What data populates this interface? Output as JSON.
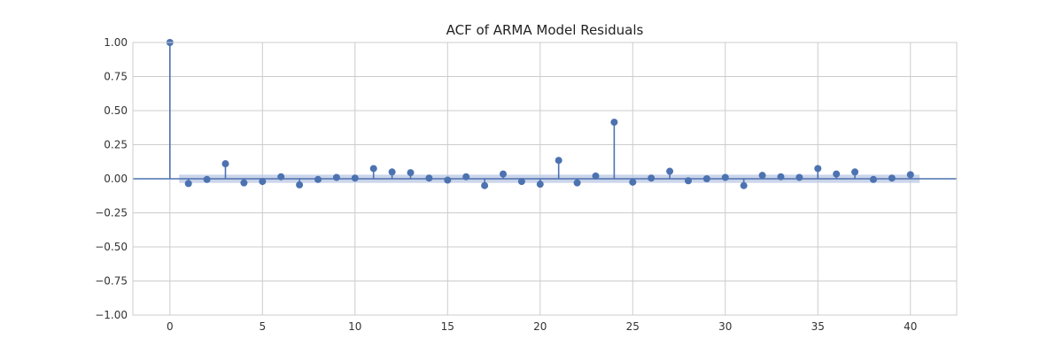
{
  "chart_data": {
    "type": "stem",
    "title": "ACF of ARMA Model Residuals",
    "xlabel": "",
    "ylabel": "",
    "xlim": [
      -2,
      42.5
    ],
    "ylim": [
      -1.0,
      1.0
    ],
    "x_ticks": [
      0,
      5,
      10,
      15,
      20,
      25,
      30,
      35,
      40
    ],
    "y_ticks": [
      -1.0,
      -0.75,
      -0.5,
      -0.25,
      0.0,
      0.25,
      0.5,
      0.75,
      1.0
    ],
    "y_tick_labels": [
      "−1.00",
      "−0.75",
      "−0.50",
      "−0.25",
      "0.00",
      "0.25",
      "0.50",
      "0.75",
      "1.00"
    ],
    "x_tick_labels": [
      "0",
      "5",
      "10",
      "15",
      "20",
      "25",
      "30",
      "35",
      "40"
    ],
    "grid": true,
    "lags": [
      0,
      1,
      2,
      3,
      4,
      5,
      6,
      7,
      8,
      9,
      10,
      11,
      12,
      13,
      14,
      15,
      16,
      17,
      18,
      19,
      20,
      21,
      22,
      23,
      24,
      25,
      26,
      27,
      28,
      29,
      30,
      31,
      32,
      33,
      34,
      35,
      36,
      37,
      38,
      39,
      40
    ],
    "acf": [
      1.0,
      -0.035,
      -0.005,
      0.11,
      -0.03,
      -0.02,
      0.015,
      -0.045,
      -0.005,
      0.01,
      0.005,
      0.075,
      0.05,
      0.045,
      0.005,
      -0.01,
      0.015,
      -0.05,
      0.035,
      -0.02,
      -0.04,
      0.135,
      -0.03,
      0.02,
      0.415,
      -0.025,
      0.005,
      0.055,
      -0.015,
      0.0,
      0.01,
      -0.05,
      0.025,
      0.015,
      0.01,
      0.075,
      0.035,
      0.05,
      -0.005,
      0.005,
      0.03
    ],
    "confidence_band": {
      "upper": 0.03,
      "lower": -0.03,
      "from_lag": 0.5,
      "to_lag": 40.5
    },
    "colors": {
      "stem": "#4c72b0",
      "band": "#b9c7e3",
      "grid": "#cccccc",
      "axis": "#cccccc"
    }
  }
}
